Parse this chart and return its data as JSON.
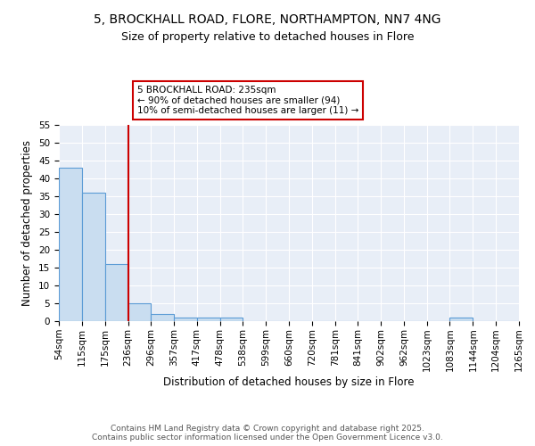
{
  "title_line1": "5, BROCKHALL ROAD, FLORE, NORTHAMPTON, NN7 4NG",
  "title_line2": "Size of property relative to detached houses in Flore",
  "xlabel": "Distribution of detached houses by size in Flore",
  "ylabel": "Number of detached properties",
  "bin_edges": [
    54,
    115,
    175,
    236,
    296,
    357,
    417,
    478,
    538,
    599,
    660,
    720,
    781,
    841,
    902,
    962,
    1023,
    1083,
    1144,
    1204,
    1265
  ],
  "bar_heights": [
    43,
    36,
    16,
    5,
    2,
    1,
    1,
    1,
    0,
    0,
    0,
    0,
    0,
    0,
    0,
    0,
    0,
    1,
    0,
    0
  ],
  "bar_color": "#c9ddf0",
  "bar_edgecolor": "#5b9bd5",
  "red_line_x": 236,
  "red_line_color": "#cc0000",
  "annotation_line1": "5 BROCKHALL ROAD: 235sqm",
  "annotation_line2": "← 90% of detached houses are smaller (94)",
  "annotation_line3": "10% of semi-detached houses are larger (11) →",
  "annotation_box_edgecolor": "#cc0000",
  "annotation_box_facecolor": "white",
  "ylim": [
    0,
    55
  ],
  "yticks": [
    0,
    5,
    10,
    15,
    20,
    25,
    30,
    35,
    40,
    45,
    50,
    55
  ],
  "bg_color": "#e8eef7",
  "footer_text": "Contains HM Land Registry data © Crown copyright and database right 2025.\nContains public sector information licensed under the Open Government Licence v3.0.",
  "title_fontsize": 10,
  "subtitle_fontsize": 9,
  "axis_label_fontsize": 8.5,
  "tick_fontsize": 7.5,
  "annotation_fontsize": 7.5,
  "footer_fontsize": 6.5
}
